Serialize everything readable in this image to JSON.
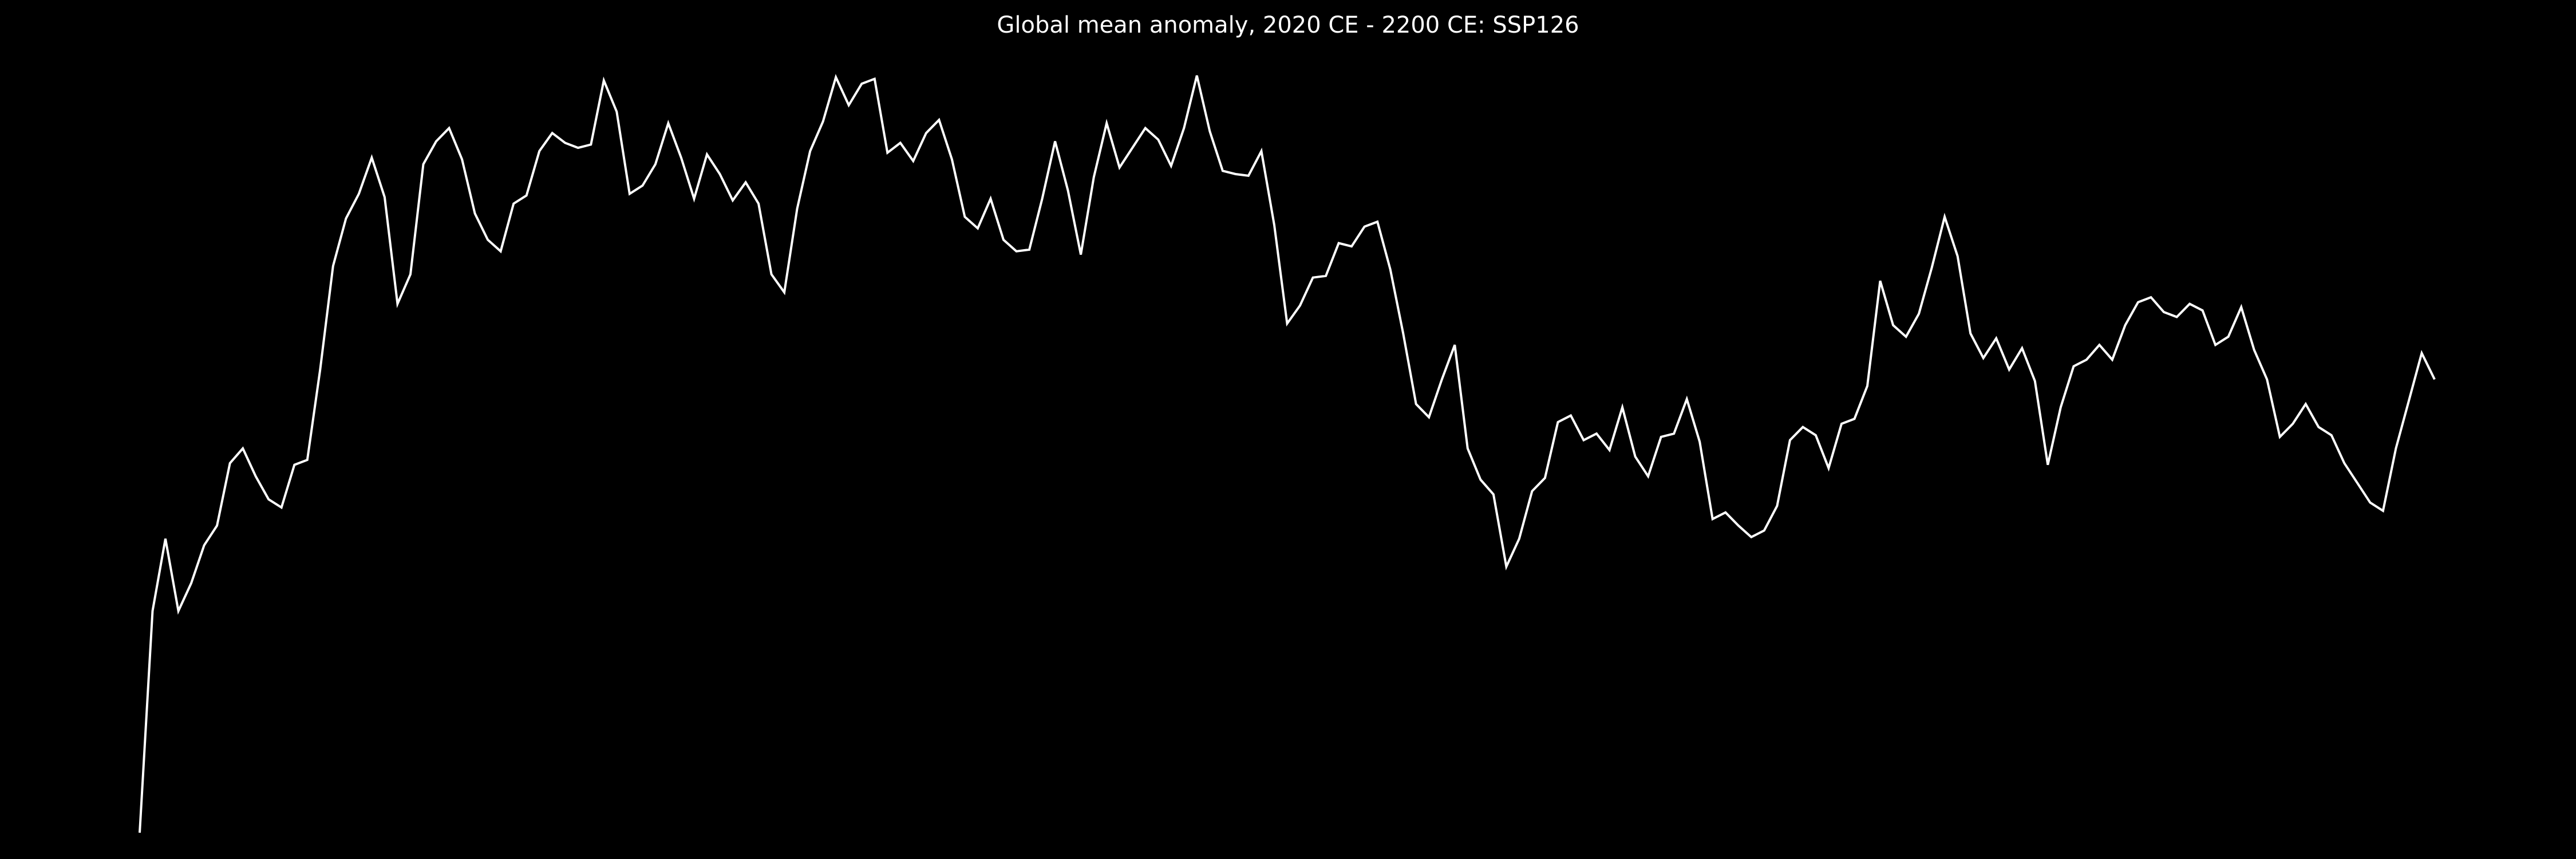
{
  "chart_data": {
    "type": "line",
    "title": "Global mean anomaly, 2020 CE - 2200 CE: SSP126",
    "color": "#ffffff",
    "background": "#000000",
    "ylim": [
      0,
      523
    ],
    "values": [
      16,
      151,
      195,
      151,
      168,
      191,
      203,
      241,
      250,
      233,
      219,
      214,
      240,
      243,
      298,
      361,
      390,
      405,
      427,
      403,
      338,
      356,
      423,
      437,
      445,
      426,
      393,
      377,
      370,
      399,
      404,
      431,
      442,
      436,
      433,
      435,
      474,
      455,
      405,
      410,
      423,
      448,
      427,
      402,
      429,
      417,
      401,
      412,
      399,
      356,
      345,
      396,
      431,
      449,
      476,
      459,
      472,
      475,
      430,
      436,
      425,
      442,
      450,
      426,
      391,
      384,
      402,
      377,
      370,
      371,
      402,
      437,
      407,
      368,
      415,
      448,
      421,
      433,
      445,
      438,
      422,
      445,
      477,
      443,
      419,
      417,
      416,
      431,
      386,
      326,
      337,
      354,
      355,
      375,
      373,
      385,
      388,
      359,
      320,
      277,
      269,
      292,
      313,
      250,
      231,
      222,
      178,
      195,
      224,
      232,
      266,
      270,
      255,
      259,
      249,
      275,
      245,
      233,
      257,
      259,
      280,
      254,
      207,
      211,
      203,
      196,
      200,
      215,
      255,
      263,
      258,
      238,
      265,
      268,
      288,
      352,
      325,
      318,
      332,
      360,
      391,
      367,
      320,
      305,
      317,
      298,
      311,
      291,
      240,
      275,
      300,
      304,
      313,
      304,
      325,
      339,
      342,
      333,
      330,
      338,
      334,
      313,
      318,
      336,
      310,
      292,
      257,
      265,
      277,
      263,
      258,
      241,
      229,
      217,
      212,
      250,
      279,
      308,
      292
    ]
  }
}
